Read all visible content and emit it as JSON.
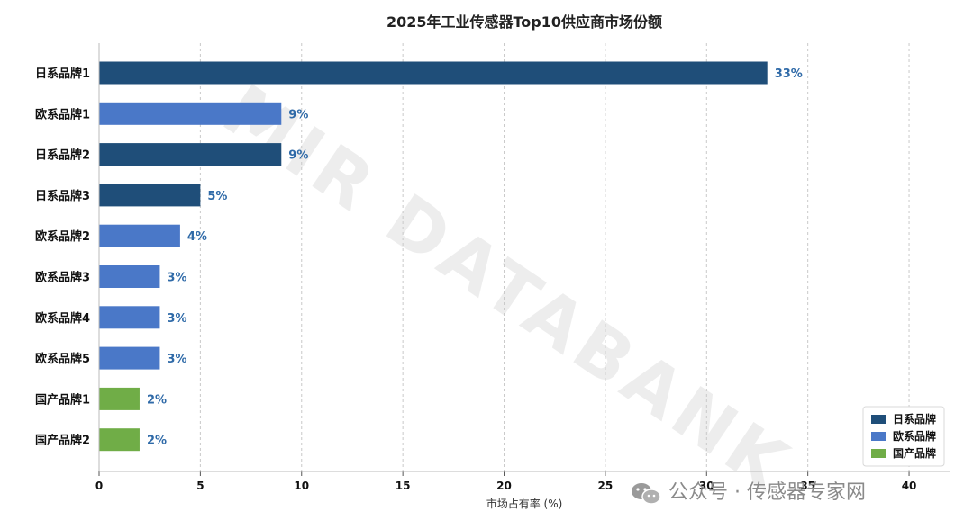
{
  "chart_data": {
    "type": "bar",
    "orientation": "horizontal",
    "title": "2025年工业传感器Top10供应商市场份额",
    "xlabel": "市场占有率 (%)",
    "ylabel": "",
    "xlim": [
      0,
      42
    ],
    "xticks": [
      0,
      5,
      10,
      15,
      20,
      25,
      30,
      35,
      40
    ],
    "grid": "vertical dashed",
    "legend_position": "bottom-right",
    "categories": [
      "日系品牌1",
      "欧系品牌1",
      "日系品牌2",
      "日系品牌3",
      "欧系品牌2",
      "欧系品牌3",
      "欧系品牌4",
      "欧系品牌5",
      "国产品牌1",
      "国产品牌2"
    ],
    "values": [
      33,
      9,
      9,
      5,
      4,
      3,
      3,
      3,
      2,
      2
    ],
    "value_labels": [
      "33%",
      "9%",
      "9%",
      "5%",
      "4%",
      "3%",
      "3%",
      "3%",
      "2%",
      "2%"
    ],
    "bar_groups": [
      0,
      1,
      0,
      0,
      1,
      1,
      1,
      1,
      2,
      2
    ],
    "groups": [
      {
        "name": "日系品牌",
        "color": "#1f4e79"
      },
      {
        "name": "欧系品牌",
        "color": "#4a78c8"
      },
      {
        "name": "国产品牌",
        "color": "#70ad47"
      }
    ]
  },
  "watermark": "MIR DATABANK",
  "footer": {
    "icon": "wechat-icon",
    "text": "公众号 · 传感器专家网"
  }
}
